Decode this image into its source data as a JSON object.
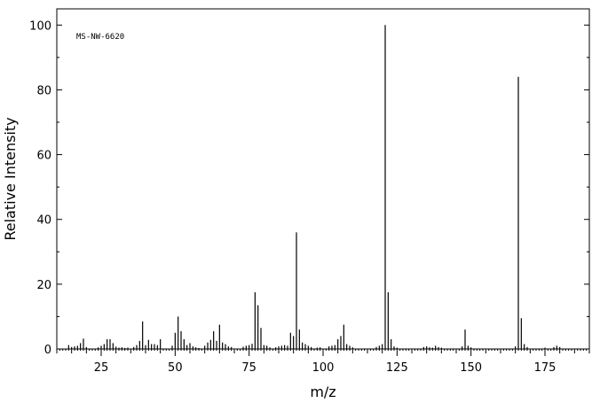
{
  "chart_data": {
    "type": "bar",
    "annotation": "MS-NW-6620",
    "xlabel": "m/z",
    "ylabel": "Relative Intensity",
    "xlim": [
      10,
      190
    ],
    "ylim": [
      0,
      105
    ],
    "x_major_ticks": [
      25,
      50,
      75,
      100,
      125,
      150,
      175
    ],
    "y_major_ticks": [
      0,
      20,
      40,
      60,
      80,
      100
    ],
    "grid": false,
    "x": [
      14,
      15,
      16,
      17,
      18,
      19,
      20,
      24,
      25,
      26,
      27,
      28,
      29,
      30,
      31,
      32,
      33,
      34,
      36,
      37,
      38,
      39,
      40,
      41,
      42,
      43,
      44,
      45,
      49,
      50,
      51,
      52,
      53,
      54,
      55,
      56,
      57,
      58,
      60,
      61,
      62,
      63,
      64,
      65,
      66,
      67,
      68,
      69,
      73,
      74,
      75,
      76,
      77,
      78,
      79,
      80,
      81,
      82,
      84,
      85,
      86,
      87,
      88,
      89,
      90,
      91,
      92,
      93,
      94,
      95,
      96,
      98,
      99,
      102,
      103,
      104,
      105,
      106,
      107,
      108,
      109,
      110,
      118,
      119,
      120,
      121,
      122,
      123,
      124,
      125,
      134,
      135,
      136,
      137,
      138,
      139,
      140,
      147,
      148,
      149,
      150,
      165,
      166,
      167,
      168,
      169,
      175,
      178,
      179,
      180
    ],
    "intensity": [
      1.2,
      0.6,
      0.8,
      1.0,
      1.8,
      3.2,
      0.6,
      0.5,
      1.0,
      1.5,
      3.0,
      3.0,
      1.8,
      0.7,
      0.4,
      0.5,
      0.3,
      0.4,
      0.6,
      1.2,
      2.5,
      8.5,
      1.2,
      2.8,
      1.5,
      1.5,
      1.2,
      3.0,
      1.0,
      5.0,
      10.0,
      5.5,
      3.0,
      1.2,
      1.8,
      0.8,
      0.5,
      0.3,
      1.0,
      2.0,
      2.8,
      5.5,
      2.5,
      7.5,
      2.0,
      1.5,
      0.8,
      0.6,
      0.7,
      1.0,
      1.2,
      1.6,
      17.5,
      13.5,
      6.5,
      1.2,
      1.0,
      0.5,
      0.5,
      0.8,
      1.0,
      1.2,
      1.0,
      5.0,
      4.0,
      36.0,
      6.0,
      2.0,
      1.5,
      1.0,
      0.6,
      0.4,
      0.5,
      0.8,
      1.0,
      1.2,
      3.0,
      4.0,
      7.5,
      1.5,
      1.0,
      0.5,
      0.6,
      1.0,
      1.5,
      100.0,
      17.5,
      3.0,
      0.8,
      0.4,
      0.6,
      0.8,
      0.5,
      0.4,
      1.0,
      0.6,
      0.4,
      0.8,
      6.0,
      1.0,
      0.5,
      0.8,
      84.0,
      9.5,
      1.5,
      0.6,
      0.4,
      0.6,
      1.0,
      0.6
    ]
  }
}
